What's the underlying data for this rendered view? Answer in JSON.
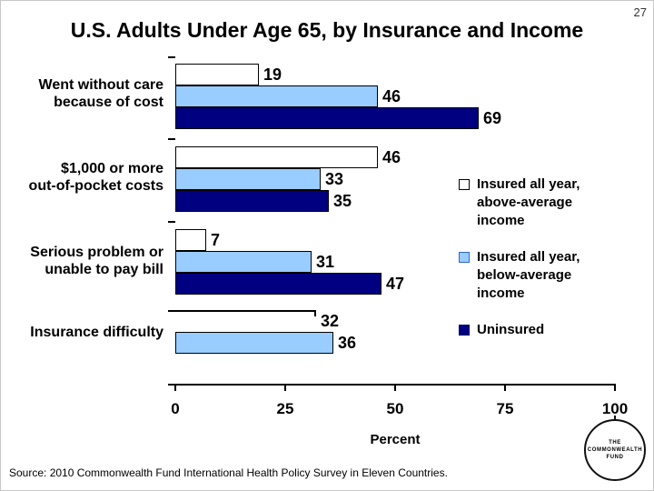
{
  "page_number": "27",
  "title": "U.S. Adults Under Age 65, by Insurance and Income",
  "source": "Source: 2010 Commonwealth Fund International Health Policy Survey in Eleven Countries.",
  "logo": {
    "line1": "THE",
    "line2": "COMMONWEALTH",
    "line3": "FUND"
  },
  "colors": {
    "light_blue": "#99CCFF",
    "navy": "#000080",
    "white": "#FFFFFF",
    "bar_border": "#000000"
  },
  "chart_data": {
    "type": "bar",
    "orientation": "horizontal",
    "title": "U.S. Adults Under Age 65, by Insurance and Income",
    "xlabel": "Percent",
    "xlim": [
      0,
      100
    ],
    "xticks": [
      0,
      25,
      50,
      75,
      100
    ],
    "grid": false,
    "legend_position": "right",
    "categories": [
      "Went without care\nbecause of cost",
      "$1,000 or more\nout-of-pocket costs",
      "Serious problem or\nunable to pay bill",
      "Insurance difficulty"
    ],
    "series": [
      {
        "name": "Insured all year, above-average income",
        "color": "#FFFFFF",
        "legend_border": "#000000",
        "values": [
          19,
          46,
          7,
          32
        ]
      },
      {
        "name": "Insured all year, below-average income",
        "color": "#99CCFF",
        "legend_border": "#3366CC",
        "values": [
          46,
          33,
          31,
          36
        ]
      },
      {
        "name": "Uninsured",
        "color": "#000080",
        "legend_border": "#000066",
        "values": [
          69,
          35,
          47,
          null
        ]
      }
    ]
  }
}
